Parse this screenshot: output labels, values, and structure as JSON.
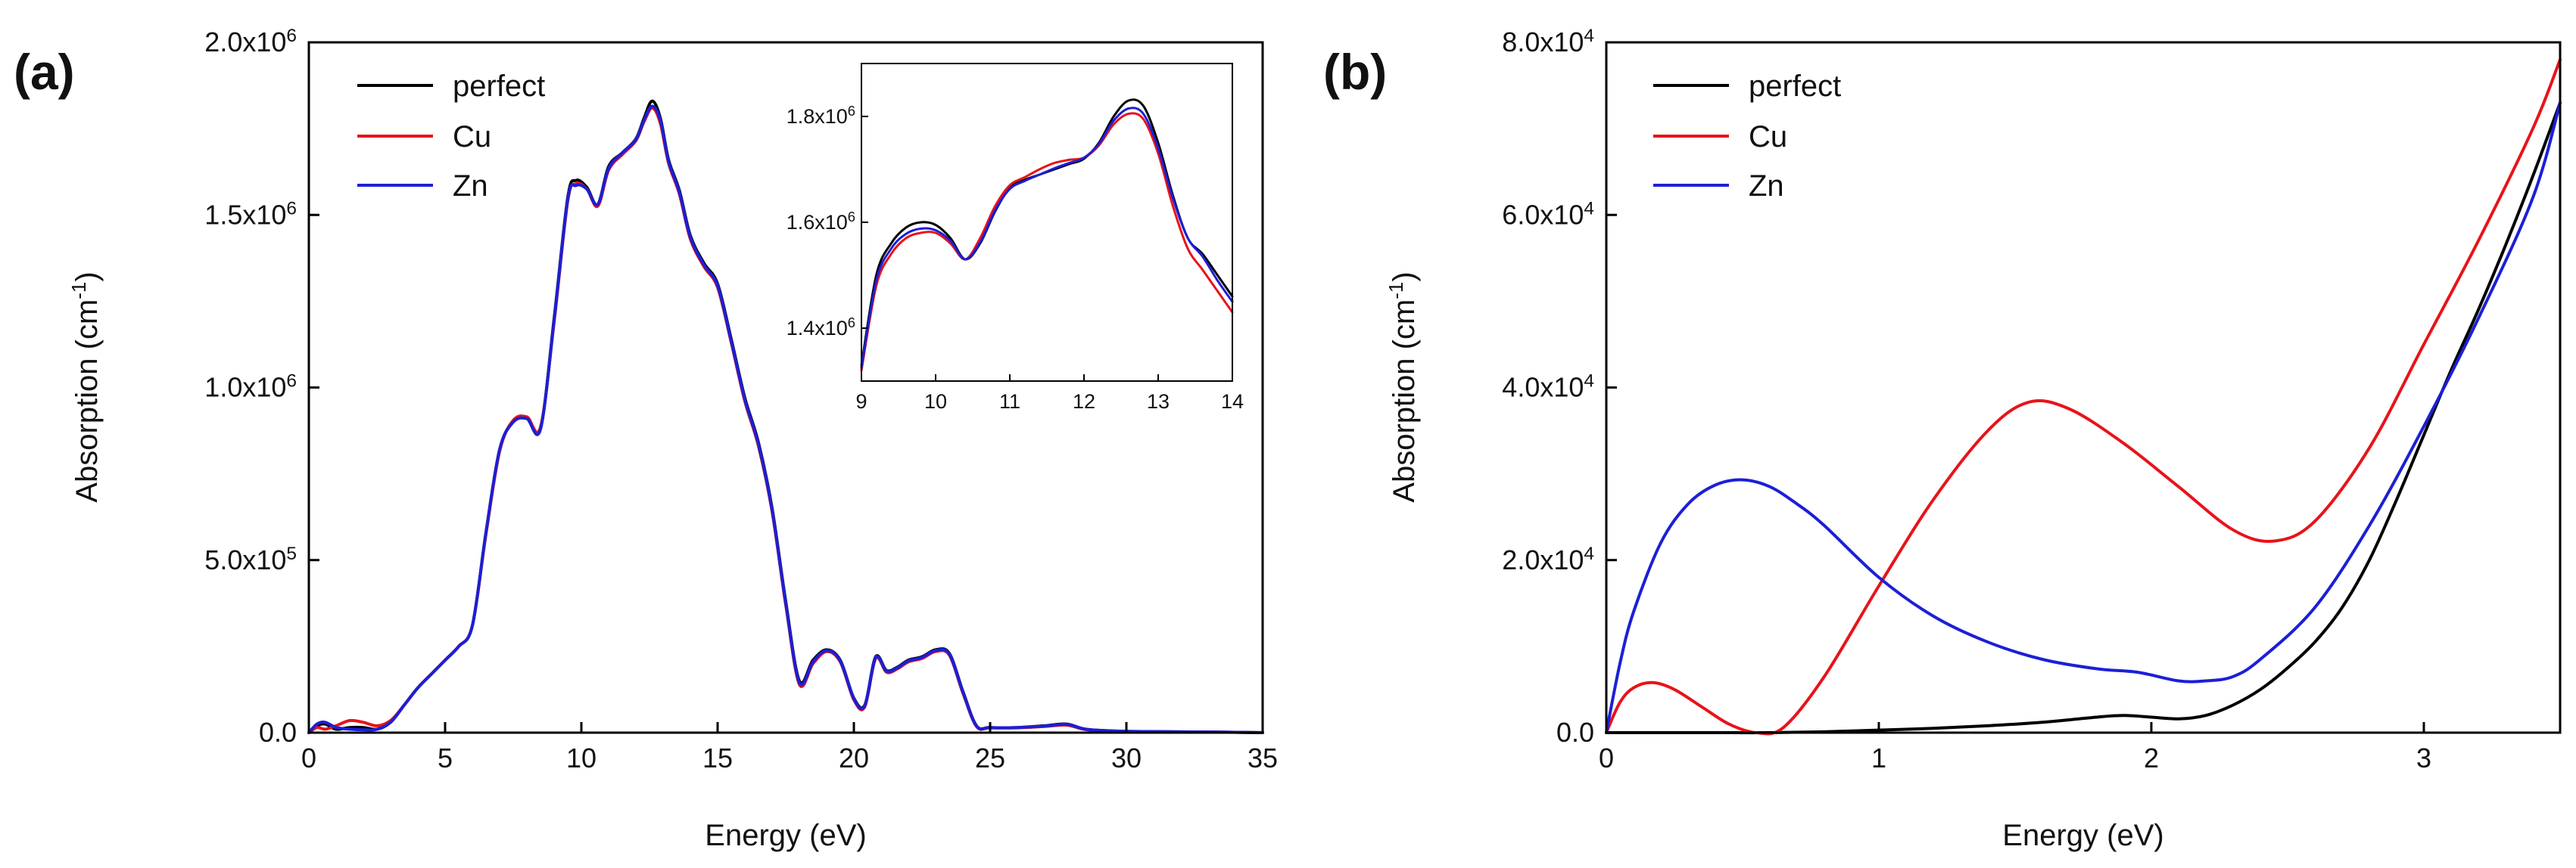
{
  "panels": [
    {
      "label": "(a)"
    },
    {
      "label": "(b)"
    }
  ],
  "chart_data": [
    {
      "type": "line",
      "xlabel": "Energy (eV)",
      "ylabel": "Absorption (cm-1)",
      "xlim": [
        0,
        35
      ],
      "ylim": [
        0,
        2000000
      ],
      "xticks": [
        0,
        5,
        10,
        15,
        20,
        25,
        30,
        35
      ],
      "xtick_labels": [
        "0",
        "5",
        "10",
        "15",
        "20",
        "25",
        "30",
        "35"
      ],
      "yticks": [
        0,
        500000,
        1000000,
        1500000,
        2000000
      ],
      "ytick_labels": [
        "0.0",
        "5.0x10^5",
        "1.0x10^6",
        "1.5x10^6",
        "2.0x10^6"
      ],
      "legend_position": "top-left",
      "grid": false,
      "series": [
        {
          "name": "perfect",
          "color": "#000000",
          "x": [
            0,
            0.3,
            0.6,
            1.0,
            1.5,
            2.0,
            2.5,
            3.0,
            3.5,
            4.0,
            4.5,
            5.0,
            5.5,
            6.0,
            6.5,
            7.0,
            7.5,
            8.0,
            8.5,
            9.0,
            9.5,
            9.8,
            10.2,
            10.6,
            11.0,
            11.5,
            12.0,
            12.3,
            12.6,
            12.9,
            13.2,
            13.6,
            14.0,
            14.5,
            15.0,
            15.5,
            16.0,
            16.5,
            17.0,
            17.5,
            18.0,
            18.5,
            19.0,
            19.5,
            20.0,
            20.4,
            20.8,
            21.2,
            21.6,
            22.0,
            22.5,
            23.0,
            23.5,
            24.0,
            24.5,
            25.0,
            26.0,
            27.0,
            27.8,
            28.5,
            29.5,
            31.0,
            33.0,
            35.0
          ],
          "y": [
            0,
            20000,
            25000,
            10000,
            15000,
            15000,
            10000,
            30000,
            80000,
            130000,
            170000,
            210000,
            250000,
            310000,
            580000,
            820000,
            900000,
            910000,
            880000,
            1200000,
            1550000,
            1600000,
            1580000,
            1530000,
            1640000,
            1680000,
            1720000,
            1780000,
            1830000,
            1780000,
            1660000,
            1570000,
            1440000,
            1360000,
            1300000,
            1140000,
            970000,
            840000,
            650000,
            380000,
            150000,
            210000,
            240000,
            210000,
            100000,
            80000,
            220000,
            180000,
            190000,
            210000,
            220000,
            240000,
            230000,
            120000,
            20000,
            15000,
            15000,
            20000,
            25000,
            10000,
            5000,
            3000,
            2000,
            0
          ]
        },
        {
          "name": "Cu",
          "color": "#e8131a",
          "x": [
            0,
            0.3,
            0.6,
            1.0,
            1.5,
            2.0,
            2.5,
            3.0,
            3.5,
            4.0,
            4.5,
            5.0,
            5.5,
            6.0,
            6.5,
            7.0,
            7.5,
            8.0,
            8.5,
            9.0,
            9.5,
            9.8,
            10.2,
            10.6,
            11.0,
            11.5,
            12.0,
            12.3,
            12.6,
            12.9,
            13.2,
            13.6,
            14.0,
            14.5,
            15.0,
            15.5,
            16.0,
            16.5,
            17.0,
            17.5,
            18.0,
            18.5,
            19.0,
            19.5,
            20.0,
            20.4,
            20.8,
            21.2,
            21.6,
            22.0,
            22.5,
            23.0,
            23.5,
            24.0,
            24.5,
            25.0,
            26.0,
            27.0,
            27.8,
            28.5,
            29.5,
            31.0,
            33.0,
            35.0
          ],
          "y": [
            0,
            15000,
            10000,
            20000,
            35000,
            30000,
            20000,
            35000,
            80000,
            130000,
            170000,
            210000,
            250000,
            310000,
            575000,
            815000,
            905000,
            915000,
            885000,
            1190000,
            1540000,
            1590000,
            1575000,
            1525000,
            1630000,
            1675000,
            1715000,
            1770000,
            1810000,
            1765000,
            1650000,
            1560000,
            1430000,
            1350000,
            1290000,
            1130000,
            960000,
            830000,
            640000,
            370000,
            140000,
            200000,
            235000,
            205000,
            95000,
            75000,
            215000,
            175000,
            185000,
            205000,
            215000,
            235000,
            225000,
            115000,
            18000,
            14000,
            14000,
            18000,
            22000,
            9000,
            4000,
            2500,
            1500,
            0
          ]
        },
        {
          "name": "Zn",
          "color": "#1c1fd6",
          "x": [
            0,
            0.3,
            0.6,
            1.0,
            1.5,
            2.0,
            2.5,
            3.0,
            3.5,
            4.0,
            4.5,
            5.0,
            5.5,
            6.0,
            6.5,
            7.0,
            7.5,
            8.0,
            8.5,
            9.0,
            9.5,
            9.8,
            10.2,
            10.6,
            11.0,
            11.5,
            12.0,
            12.3,
            12.6,
            12.9,
            13.2,
            13.6,
            14.0,
            14.5,
            15.0,
            15.5,
            16.0,
            16.5,
            17.0,
            17.5,
            18.0,
            18.5,
            19.0,
            19.5,
            20.0,
            20.4,
            20.8,
            21.2,
            21.6,
            22.0,
            22.5,
            23.0,
            23.5,
            24.0,
            24.5,
            25.0,
            26.0,
            27.0,
            27.8,
            28.5,
            29.5,
            31.0,
            33.0,
            35.0
          ],
          "y": [
            0,
            25000,
            30000,
            15000,
            10000,
            8000,
            10000,
            30000,
            80000,
            130000,
            170000,
            210000,
            250000,
            310000,
            580000,
            820000,
            900000,
            910000,
            880000,
            1195000,
            1545000,
            1585000,
            1575000,
            1530000,
            1635000,
            1680000,
            1718000,
            1775000,
            1815000,
            1775000,
            1655000,
            1565000,
            1435000,
            1355000,
            1295000,
            1135000,
            965000,
            835000,
            645000,
            375000,
            145000,
            205000,
            238000,
            208000,
            98000,
            78000,
            218000,
            178000,
            188000,
            208000,
            218000,
            238000,
            228000,
            118000,
            19000,
            15000,
            15000,
            19000,
            24000,
            10000,
            5000,
            3000,
            2000,
            0
          ]
        }
      ]
    },
    {
      "type": "line",
      "inset": true,
      "xlim": [
        9,
        14
      ],
      "ylim": [
        1300000,
        1900000
      ],
      "xticks": [
        9,
        10,
        11,
        12,
        13,
        14
      ],
      "xtick_labels": [
        "9",
        "10",
        "11",
        "12",
        "13",
        "14"
      ],
      "yticks": [
        1400000,
        1600000,
        1800000
      ],
      "ytick_labels": [
        "1.4x10^6",
        "1.6x10^6",
        "1.8x10^6"
      ],
      "series": [
        {
          "name": "perfect",
          "color": "#000000",
          "x": [
            9.0,
            9.2,
            9.4,
            9.6,
            9.8,
            10.0,
            10.2,
            10.4,
            10.6,
            10.8,
            11.0,
            11.2,
            11.4,
            11.6,
            11.8,
            12.0,
            12.2,
            12.4,
            12.6,
            12.8,
            13.0,
            13.2,
            13.4,
            13.6,
            13.8,
            14.0
          ],
          "y": [
            1330000,
            1500000,
            1560000,
            1590000,
            1600000,
            1595000,
            1570000,
            1530000,
            1560000,
            1620000,
            1665000,
            1680000,
            1690000,
            1700000,
            1710000,
            1720000,
            1750000,
            1800000,
            1830000,
            1820000,
            1750000,
            1650000,
            1570000,
            1540000,
            1500000,
            1460000
          ]
        },
        {
          "name": "Cu",
          "color": "#e8131a",
          "x": [
            9.0,
            9.2,
            9.4,
            9.6,
            9.8,
            10.0,
            10.2,
            10.4,
            10.6,
            10.8,
            11.0,
            11.2,
            11.4,
            11.6,
            11.8,
            12.0,
            12.2,
            12.4,
            12.6,
            12.8,
            13.0,
            13.2,
            13.4,
            13.6,
            13.8,
            14.0
          ],
          "y": [
            1320000,
            1480000,
            1540000,
            1570000,
            1580000,
            1580000,
            1560000,
            1530000,
            1570000,
            1630000,
            1670000,
            1685000,
            1700000,
            1712000,
            1718000,
            1722000,
            1745000,
            1785000,
            1805000,
            1795000,
            1730000,
            1630000,
            1550000,
            1510000,
            1470000,
            1430000
          ]
        },
        {
          "name": "Zn",
          "color": "#1c1fd6",
          "x": [
            9.0,
            9.2,
            9.4,
            9.6,
            9.8,
            10.0,
            10.2,
            10.4,
            10.6,
            10.8,
            11.0,
            11.2,
            11.4,
            11.6,
            11.8,
            12.0,
            12.2,
            12.4,
            12.6,
            12.8,
            13.0,
            13.2,
            13.4,
            13.6,
            13.8,
            14.0
          ],
          "y": [
            1325000,
            1490000,
            1550000,
            1578000,
            1588000,
            1585000,
            1565000,
            1530000,
            1562000,
            1622000,
            1663000,
            1678000,
            1690000,
            1702000,
            1712000,
            1722000,
            1748000,
            1792000,
            1815000,
            1805000,
            1740000,
            1645000,
            1570000,
            1535000,
            1490000,
            1450000
          ]
        }
      ]
    },
    {
      "type": "line",
      "xlabel": "Energy (eV)",
      "ylabel": "Absorption (cm-1)",
      "xlim": [
        0,
        3.5
      ],
      "ylim": [
        0,
        80000
      ],
      "xticks": [
        0,
        1,
        2,
        3
      ],
      "xtick_labels": [
        "0",
        "1",
        "2",
        "3"
      ],
      "yticks": [
        0,
        20000,
        40000,
        60000,
        80000
      ],
      "ytick_labels": [
        "0.0",
        "2.0x10^4",
        "4.0x10^4",
        "6.0x10^4",
        "8.0x10^4"
      ],
      "legend_position": "top-left",
      "grid": false,
      "series": [
        {
          "name": "perfect",
          "color": "#000000",
          "x": [
            0,
            0.2,
            0.4,
            0.6,
            0.8,
            1.0,
            1.2,
            1.4,
            1.6,
            1.8,
            1.9,
            2.0,
            2.1,
            2.2,
            2.3,
            2.4,
            2.5,
            2.6,
            2.7,
            2.8,
            2.9,
            3.0,
            3.1,
            3.2,
            3.3,
            3.4,
            3.5
          ],
          "y": [
            0,
            0,
            0,
            0,
            100,
            300,
            500,
            800,
            1200,
            1800,
            2000,
            1800,
            1600,
            2000,
            3200,
            5000,
            7500,
            10500,
            14500,
            20000,
            27000,
            34500,
            42000,
            49000,
            56500,
            64500,
            73000
          ]
        },
        {
          "name": "Cu",
          "color": "#e8131a",
          "x": [
            0,
            0.05,
            0.1,
            0.17,
            0.25,
            0.35,
            0.45,
            0.55,
            0.65,
            0.8,
            1.0,
            1.2,
            1.4,
            1.55,
            1.7,
            1.9,
            2.1,
            2.3,
            2.45,
            2.6,
            2.8,
            3.0,
            3.2,
            3.4,
            3.5
          ],
          "y": [
            0,
            3500,
            5200,
            5800,
            5000,
            3000,
            1000,
            0,
            600,
            6500,
            17000,
            27000,
            35000,
            38300,
            37500,
            33500,
            28500,
            23500,
            22200,
            24500,
            33000,
            45000,
            57000,
            70000,
            78000
          ]
        },
        {
          "name": "Zn",
          "color": "#1c1fd6",
          "x": [
            0,
            0.05,
            0.1,
            0.2,
            0.3,
            0.4,
            0.5,
            0.6,
            0.7,
            0.8,
            1.0,
            1.2,
            1.4,
            1.6,
            1.8,
            1.95,
            2.1,
            2.2,
            2.3,
            2.4,
            2.6,
            2.8,
            3.0,
            3.2,
            3.4,
            3.5
          ],
          "y": [
            0,
            8000,
            14000,
            22000,
            26500,
            28700,
            29300,
            28500,
            26500,
            24000,
            18000,
            13500,
            10500,
            8500,
            7400,
            7000,
            6000,
            6000,
            6500,
            8500,
            14500,
            24000,
            35500,
            48000,
            62000,
            73000
          ]
        }
      ]
    }
  ]
}
